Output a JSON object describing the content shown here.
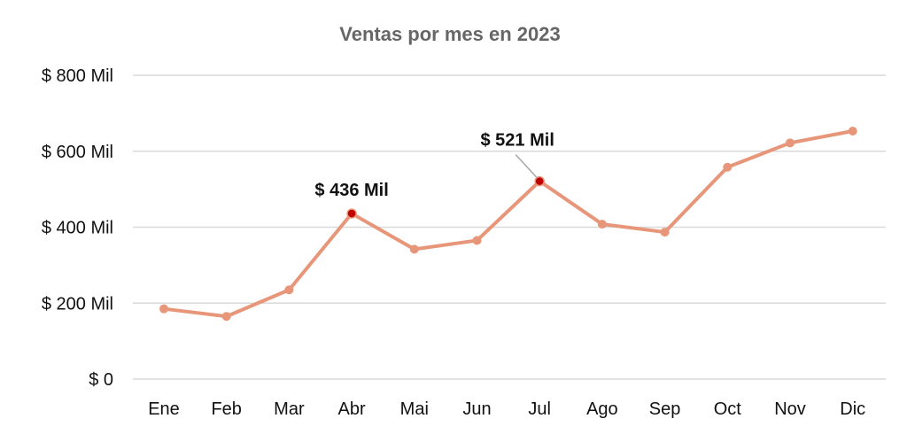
{
  "chart_data": {
    "type": "line",
    "title": "Ventas por mes en 2023",
    "xlabel": "",
    "ylabel": "",
    "categories": [
      "Ene",
      "Feb",
      "Mar",
      "Abr",
      "Mai",
      "Jun",
      "Jul",
      "Ago",
      "Sep",
      "Oct",
      "Nov",
      "Dic"
    ],
    "series": [
      {
        "values": [
          185,
          165,
          235,
          436,
          342,
          365,
          521,
          408,
          387,
          558,
          622,
          653
        ]
      }
    ],
    "ylim": [
      0,
      800
    ],
    "yticks": [
      {
        "value": 0,
        "label": "$ 0"
      },
      {
        "value": 200,
        "label": "$ 200 Mil"
      },
      {
        "value": 400,
        "label": "$ 400 Mil"
      },
      {
        "value": 600,
        "label": "$ 600 Mil"
      },
      {
        "value": 800,
        "label": "$ 800 Mil"
      }
    ],
    "grid": true,
    "legend": "none",
    "annotations": [
      {
        "category": "Abr",
        "value": 436,
        "text": "$ 436 Mil"
      },
      {
        "category": "Jul",
        "value": 521,
        "text": "$ 521 Mil"
      }
    ],
    "colors": {
      "line": "#e8967a",
      "highlight": "#c00000",
      "leader": "#a6a6a6"
    }
  }
}
